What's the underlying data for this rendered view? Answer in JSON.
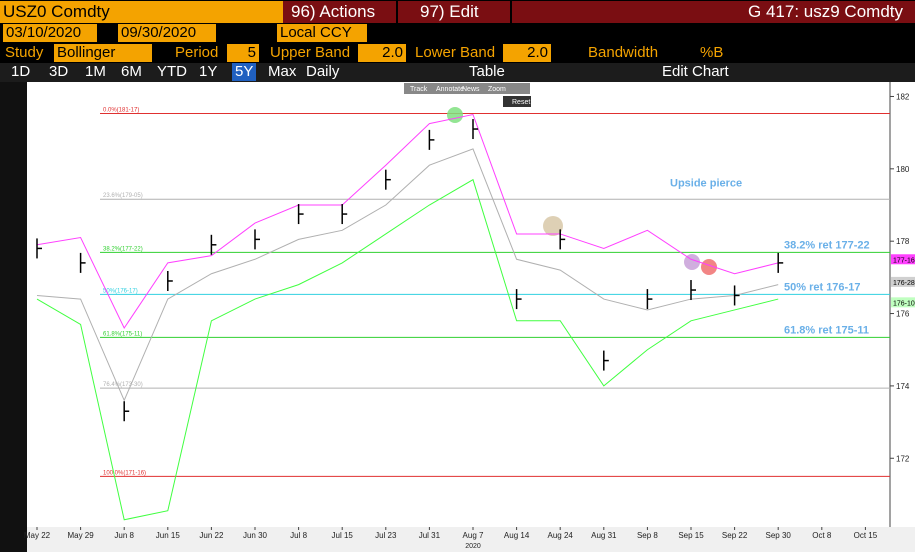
{
  "toolbar": {
    "ticker": "USZ0 Comdty",
    "actions": "96) Actions",
    "edit": "97) Edit",
    "security": "G 417: usz9 Comdty",
    "start_date": "03/10/2020",
    "end_date": "09/30/2020",
    "currency": "Local CCY",
    "study_label": "Study",
    "study": "Bollinger",
    "period_label": "Period",
    "period": "5",
    "upper_label": "Upper Band",
    "upper": "2.0",
    "lower_label": "Lower Band",
    "lower": "2.0",
    "bandwidth": "Bandwidth",
    "pctb": "%B",
    "ranges": [
      "1D",
      "3D",
      "1M",
      "6M",
      "YTD",
      "1Y",
      "5Y",
      "Max"
    ],
    "frequency": "Daily",
    "table": "Table",
    "edit_chart": "Edit Chart",
    "mini": [
      "Track",
      "Annotate",
      "News",
      "Zoom",
      "Reset"
    ]
  },
  "chart_data": {
    "type": "line",
    "categories": [
      "May 22",
      "May 29",
      "Jun 8",
      "Jun 15",
      "Jun 22",
      "Jun 30",
      "Jul 8",
      "Jul 15",
      "Jul 23",
      "Jul 31",
      "Aug 7",
      "Aug 14",
      "Aug 24",
      "Aug 31",
      "Sep 8",
      "Sep 15",
      "Sep 22",
      "Sep 30",
      "Oct 8",
      "Oct 15"
    ],
    "year_label": "2020",
    "series": [
      {
        "color": "#ff40ff",
        "values": [
          177.9,
          178.1,
          175.6,
          177.4,
          177.6,
          178.5,
          179.0,
          179.0,
          180.1,
          181.25,
          181.5,
          178.2,
          178.2,
          177.8,
          178.3,
          177.5,
          177.1,
          177.4,
          null,
          null
        ]
      },
      {
        "color": "#b0b0b0",
        "values": [
          176.5,
          176.4,
          173.6,
          176.4,
          177.1,
          177.5,
          178.05,
          178.3,
          179.0,
          180.1,
          180.55,
          177.5,
          177.2,
          176.4,
          176.1,
          176.4,
          176.5,
          176.8,
          null,
          null
        ]
      },
      {
        "color": "#40ff40",
        "values": [
          176.4,
          175.7,
          170.3,
          170.55,
          175.8,
          176.4,
          176.8,
          177.4,
          178.2,
          179.0,
          179.7,
          175.8,
          175.8,
          174.0,
          175.0,
          175.8,
          176.1,
          176.4,
          null,
          null
        ]
      },
      {
        "color": "#000000",
        "values": [
          177.8,
          177.4,
          173.3,
          176.9,
          177.9,
          178.05,
          178.75,
          178.75,
          179.7,
          180.8,
          181.1,
          176.4,
          178.05,
          174.7,
          176.4,
          176.65,
          176.5,
          177.4,
          null,
          null
        ]
      }
    ],
    "ylim": [
      170.1,
      182.4
    ],
    "yticks": [
      172,
      174,
      176,
      178,
      180,
      182
    ],
    "levels": [
      {
        "label": "0.0%(181-17)",
        "value": 181.53,
        "color": "#e03030"
      },
      {
        "label": "23.6%(179-05)",
        "value": 179.16,
        "color": "#b0b0b0"
      },
      {
        "label": "38.2%(177-22)",
        "value": 177.69,
        "color": "#30d030"
      },
      {
        "label": "50%(176-17)",
        "value": 176.53,
        "color": "#30d0e0"
      },
      {
        "label": "61.8%(175-11)",
        "value": 175.34,
        "color": "#30d030"
      },
      {
        "label": "76.4%(173-30)",
        "value": 173.94,
        "color": "#b0b0b0"
      },
      {
        "label": "100.0%(171-16)",
        "value": 171.5,
        "color": "#e03030"
      }
    ],
    "annotations": [
      {
        "label": "38.2% ret 177-22",
        "value": 177.69
      },
      {
        "label": "50% ret 176-17",
        "value": 176.53
      },
      {
        "label": "61.8% ret 175-11",
        "value": 175.34
      },
      {
        "label": "Upside pierce",
        "value": 179.4
      }
    ],
    "price_tags": [
      {
        "label": "177-16",
        "value": 177.5,
        "color": "#ff40ff"
      },
      {
        "label": "176-28",
        "value": 176.875,
        "color": "#d0d0d0"
      },
      {
        "label": "176-10",
        "value": 176.31,
        "color": "#c0ffc0"
      }
    ]
  }
}
